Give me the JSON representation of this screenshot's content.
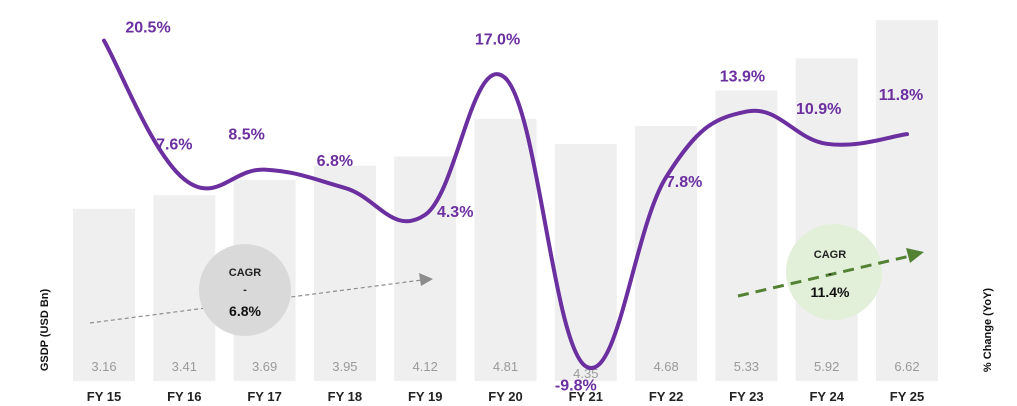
{
  "chart_data": {
    "type": "bar",
    "categories": [
      "FY 15",
      "FY 16",
      "FY 17",
      "FY 18",
      "FY 19",
      "FY 20",
      "FY 21",
      "FY 22",
      "FY 23",
      "FY 24",
      "FY 25"
    ],
    "bar_values": [
      3.16,
      3.41,
      3.69,
      3.95,
      4.12,
      4.81,
      4.35,
      4.68,
      5.33,
      5.92,
      6.62
    ],
    "bar_labels": [
      "3.16",
      "3.41",
      "3.69",
      "3.95",
      "4.12",
      "4.81",
      "4.35",
      "4.68",
      "5.33",
      "5.92",
      "6.62"
    ],
    "line_values": [
      20.5,
      7.6,
      8.5,
      6.8,
      4.3,
      17.0,
      -9.8,
      7.8,
      13.9,
      10.9,
      11.8
    ],
    "line_labels": [
      "20.5%",
      "7.6%",
      "8.5%",
      "6.8%",
      "4.3%",
      "17.0%",
      "-9.8%",
      "7.8%",
      "13.9%",
      "10.9%",
      "11.8%"
    ],
    "ylabel_left": "GSDP (USD Bn)",
    "ylabel_right": "% Change (YoY)",
    "grid": false,
    "legend": "none",
    "colors": {
      "bar": "#efefef",
      "line": "#6b2fa0",
      "cagr1_fill": "#d9d9d9",
      "cagr2_fill": "#e2efd9",
      "arrow1": "#8c8c8c",
      "arrow2": "#548235"
    },
    "annotations": [
      {
        "label": "CAGR",
        "dash": "-",
        "value": "6.8%"
      },
      {
        "label": "CAGR",
        "dash": "-",
        "value": "11.4%"
      }
    ]
  }
}
